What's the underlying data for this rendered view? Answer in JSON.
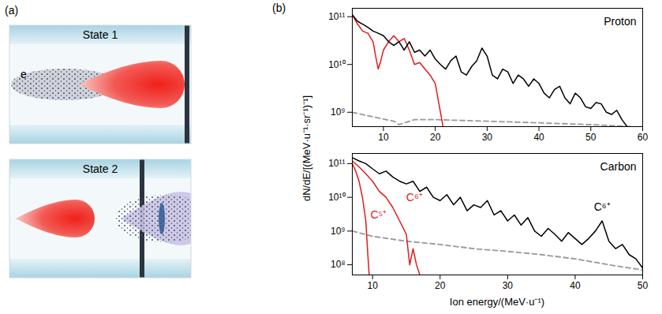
{
  "panel_a": {
    "label": "(a)",
    "states": [
      {
        "title": "State 1",
        "electron_label": "e"
      },
      {
        "title": "State 2"
      }
    ]
  },
  "panel_b": {
    "label": "(b)",
    "y_label": "dN/dE/[(MeV·u⁻¹·sr⁻¹)⁻¹]",
    "x_label": "Ion energy/(MeV·u⁻¹)"
  },
  "chart_data": [
    {
      "type": "line",
      "title": "Proton",
      "log": "y",
      "xlim": [
        4,
        60
      ],
      "xticks": [
        10,
        20,
        30,
        40,
        50,
        60
      ],
      "ylim": [
        500000000.0,
        150000000000.0
      ],
      "yticks": [
        {
          "value": 1000000000.0,
          "label": "10⁹"
        },
        {
          "value": 10000000000.0,
          "label": "10¹⁰"
        },
        {
          "value": 100000000000.0,
          "label": "10¹¹"
        }
      ],
      "series": [
        {
          "color": "#999999",
          "line_style": "dashed",
          "x": [
            4,
            8,
            12,
            13,
            16,
            20,
            30,
            40,
            50,
            58
          ],
          "values": [
            1000000000.0,
            800000000.0,
            650000000.0,
            550000000.0,
            700000000.0,
            700000000.0,
            650000000.0,
            600000000.0,
            550000000.0,
            500000000.0
          ]
        },
        {
          "color": "#e31a1c",
          "line_style": "solid",
          "x": [
            4,
            5,
            6,
            7,
            8,
            8.5,
            9,
            9.5,
            10,
            11,
            12,
            13,
            14,
            15,
            16,
            17,
            18,
            19,
            20,
            20.5,
            21,
            21.5
          ],
          "values": [
            110000000000.0,
            70000000000.0,
            50000000000.0,
            45000000000.0,
            30000000000.0,
            15000000000.0,
            8000000000.0,
            12000000000.0,
            20000000000.0,
            30000000000.0,
            40000000000.0,
            30000000000.0,
            35000000000.0,
            20000000000.0,
            10000000000.0,
            11000000000.0,
            8000000000.0,
            6000000000.0,
            4000000000.0,
            2000000000.0,
            1000000000.0,
            500000000.0
          ]
        },
        {
          "color": "#000000",
          "line_style": "solid",
          "x": [
            4,
            5,
            6,
            7,
            8,
            9,
            10,
            11,
            12,
            13,
            14,
            15,
            16,
            17,
            18,
            19,
            20,
            21,
            22,
            23,
            24,
            25,
            26,
            27,
            28,
            29,
            30,
            31,
            32,
            33,
            34,
            35,
            36,
            37,
            38,
            39,
            40,
            41,
            42,
            43,
            44,
            45,
            46,
            47,
            48,
            49,
            50,
            51,
            52,
            53,
            54,
            55,
            56,
            57
          ],
          "values": [
            110000000000.0,
            80000000000.0,
            70000000000.0,
            60000000000.0,
            50000000000.0,
            45000000000.0,
            40000000000.0,
            30000000000.0,
            25000000000.0,
            30000000000.0,
            20000000000.0,
            30000000000.0,
            18000000000.0,
            20000000000.0,
            15000000000.0,
            20000000000.0,
            13000000000.0,
            10000000000.0,
            8000000000.0,
            12000000000.0,
            15000000000.0,
            7000000000.0,
            6000000000.0,
            9000000000.0,
            12000000000.0,
            22000000000.0,
            15000000000.0,
            6000000000.0,
            5000000000.0,
            8000000000.0,
            7000000000.0,
            4000000000.0,
            6000000000.0,
            5000000000.0,
            3500000000.0,
            5000000000.0,
            4000000000.0,
            2500000000.0,
            2000000000.0,
            3000000000.0,
            3500000000.0,
            2000000000.0,
            1500000000.0,
            2500000000.0,
            2000000000.0,
            1300000000.0,
            1200000000.0,
            1600000000.0,
            1500000000.0,
            1000000000.0,
            900000000.0,
            1100000000.0,
            700000000.0,
            500000000.0
          ]
        }
      ]
    },
    {
      "type": "line",
      "title": "Carbon",
      "log": "y",
      "xlim": [
        7,
        50
      ],
      "xticks": [
        10,
        20,
        30,
        40,
        50
      ],
      "ylim": [
        50000000.0,
        200000000000.0
      ],
      "yticks": [
        {
          "value": 100000000.0,
          "label": "10⁸"
        },
        {
          "value": 1000000000.0,
          "label": "10⁹"
        },
        {
          "value": 10000000000.0,
          "label": "10¹⁰"
        },
        {
          "value": 100000000000.0,
          "label": "10¹¹"
        }
      ],
      "series": [
        {
          "color": "#999999",
          "line_style": "dashed",
          "x": [
            7,
            10,
            15,
            20,
            25,
            30,
            35,
            40,
            45,
            50
          ],
          "values": [
            1000000000.0,
            700000000.0,
            500000000.0,
            400000000.0,
            300000000.0,
            250000000.0,
            200000000.0,
            150000000.0,
            100000000.0,
            70000000.0
          ]
        },
        {
          "color": "#e31a1c",
          "line_style": "solid",
          "x": [
            7,
            7.5,
            8,
            8.5,
            9,
            9.3,
            9.5
          ],
          "values": [
            100000000000.0,
            60000000000.0,
            30000000000.0,
            10000000000.0,
            2000000000.0,
            200000000.0,
            50000000.0
          ]
        },
        {
          "color": "#e31a1c",
          "line_style": "solid",
          "x": [
            7,
            8,
            9,
            10,
            11,
            12,
            13,
            14,
            15,
            15.5,
            16,
            16.5,
            17
          ],
          "values": [
            120000000000.0,
            80000000000.0,
            50000000000.0,
            30000000000.0,
            15000000000.0,
            10000000000.0,
            5000000000.0,
            2000000000.0,
            800000000.0,
            100000000.0,
            300000000.0,
            100000000.0,
            50000000.0
          ]
        },
        {
          "color": "#000000",
          "line_style": "solid",
          "x": [
            7,
            8,
            9,
            10,
            11,
            12,
            13,
            14,
            15,
            16,
            17,
            18,
            19,
            20,
            21,
            22,
            23,
            24,
            25,
            26,
            27,
            28,
            29,
            30,
            31,
            32,
            33,
            34,
            35,
            36,
            37,
            38,
            39,
            40,
            41,
            42,
            43,
            44,
            45,
            46,
            47,
            48,
            49,
            50
          ],
          "values": [
            150000000000.0,
            120000000000.0,
            100000000000.0,
            70000000000.0,
            50000000000.0,
            60000000000.0,
            40000000000.0,
            30000000000.0,
            25000000000.0,
            30000000000.0,
            15000000000.0,
            20000000000.0,
            10000000000.0,
            8000000000.0,
            12000000000.0,
            6000000000.0,
            10000000000.0,
            4000000000.0,
            6000000000.0,
            5000000000.0,
            8000000000.0,
            3000000000.0,
            4000000000.0,
            2000000000.0,
            3000000000.0,
            1500000000.0,
            2500000000.0,
            1000000000.0,
            700000000.0,
            1200000000.0,
            800000000.0,
            500000000.0,
            900000000.0,
            600000000.0,
            400000000.0,
            600000000.0,
            1000000000.0,
            2000000000.0,
            500000000.0,
            300000000.0,
            400000000.0,
            200000000.0,
            150000000.0,
            80000000.0
          ]
        }
      ],
      "annotations": [
        {
          "text": "C⁵⁺",
          "x": 10.9,
          "y": 3000000000.0,
          "color": "#e31a1c"
        },
        {
          "text": "C⁶⁺",
          "x": 16.2,
          "y": 10000000000.0,
          "color": "#e31a1c"
        },
        {
          "text": "C⁶⁺",
          "x": 44,
          "y": 5000000000.0,
          "color": "#000000"
        }
      ]
    }
  ]
}
